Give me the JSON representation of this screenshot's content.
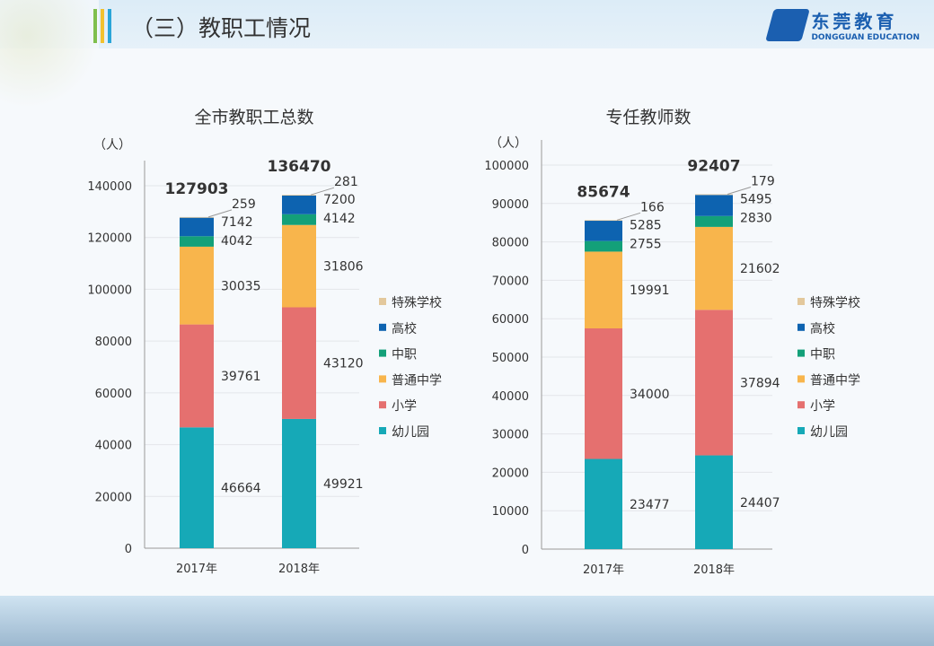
{
  "header": {
    "title": "（三）教职工情况",
    "logo_text": "东莞教育",
    "logo_subtext": "DONGGUAN EDUCATION"
  },
  "colors": {
    "特殊学校": "#e3c89c",
    "高校": "#0d63b0",
    "中职": "#13a079",
    "普通中学": "#f8b54c",
    "小学": "#e5706f",
    "幼儿园": "#16a9b7"
  },
  "chart_data": [
    {
      "type": "bar",
      "stacked": true,
      "title": "全市教职工总数",
      "ylabel": "（人）",
      "ylim": [
        0,
        140000
      ],
      "yticks": [
        0,
        20000,
        40000,
        60000,
        80000,
        100000,
        120000,
        140000
      ],
      "grid": true,
      "legend": "right",
      "categories": [
        "2017年",
        "2018年"
      ],
      "totals": [
        127903,
        136470
      ],
      "series": [
        {
          "name": "幼儿园",
          "values": [
            46664,
            49921
          ]
        },
        {
          "name": "小学",
          "values": [
            39761,
            43120
          ]
        },
        {
          "name": "普通中学",
          "values": [
            30035,
            31806
          ]
        },
        {
          "name": "中职",
          "values": [
            4042,
            4142
          ]
        },
        {
          "name": "高校",
          "values": [
            7142,
            7200
          ]
        },
        {
          "name": "特殊学校",
          "values": [
            259,
            281
          ]
        }
      ]
    },
    {
      "type": "bar",
      "stacked": true,
      "title": "专任教师数",
      "ylabel": "（人）",
      "ylim": [
        0,
        100000
      ],
      "yticks": [
        0,
        10000,
        20000,
        30000,
        40000,
        50000,
        60000,
        70000,
        80000,
        90000,
        100000
      ],
      "grid": true,
      "legend": "right",
      "categories": [
        "2017年",
        "2018年"
      ],
      "totals": [
        85674,
        92407
      ],
      "series": [
        {
          "name": "幼儿园",
          "values": [
            23477,
            24407
          ]
        },
        {
          "name": "小学",
          "values": [
            34000,
            37894
          ]
        },
        {
          "name": "普通中学",
          "values": [
            19991,
            21602
          ]
        },
        {
          "name": "中职",
          "values": [
            2755,
            2830
          ]
        },
        {
          "name": "高校",
          "values": [
            5285,
            5495
          ]
        },
        {
          "name": "特殊学校",
          "values": [
            166,
            179
          ]
        }
      ]
    }
  ]
}
